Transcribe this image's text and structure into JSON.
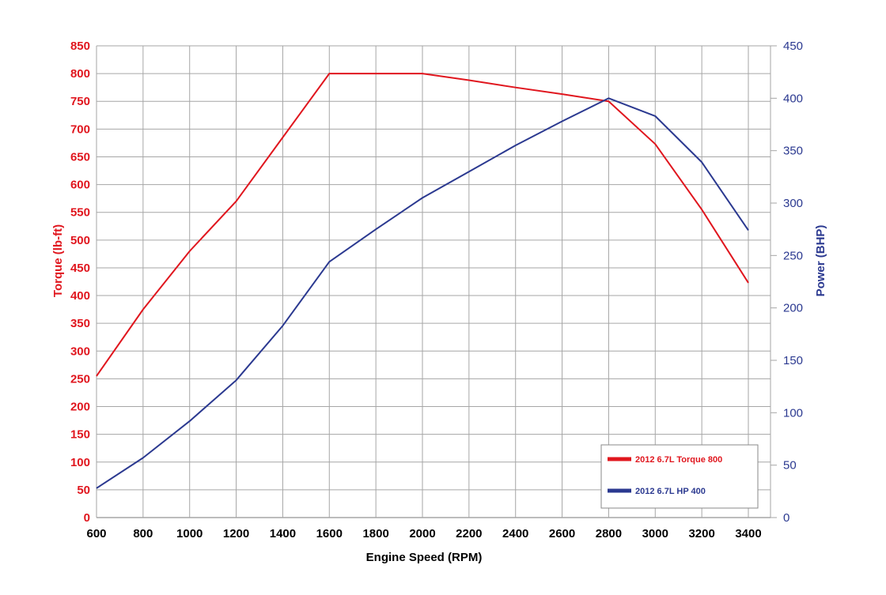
{
  "chart_data": {
    "type": "line",
    "x": [
      600,
      800,
      1000,
      1200,
      1400,
      1600,
      1800,
      2000,
      2200,
      2400,
      2600,
      2800,
      3000,
      3200,
      3400
    ],
    "xlabel": "Engine Speed (RPM)",
    "xlim": [
      600,
      3400
    ],
    "y_left": {
      "label": "Torque (lb-ft)",
      "lim": [
        0,
        850
      ],
      "step": 50
    },
    "y_right": {
      "label": "Power (BHP)",
      "lim": [
        0,
        450
      ],
      "step": 50
    },
    "grid": true,
    "legend_position": "bottom-right",
    "series": [
      {
        "name": "2012 6.7L Torque 800",
        "axis": "left",
        "color": "#e0161e",
        "values": [
          255,
          375,
          480,
          570,
          685,
          800,
          800,
          800,
          788,
          775,
          763,
          750,
          673,
          555,
          423
        ]
      },
      {
        "name": "2012 6.7L HP 400",
        "axis": "right",
        "color": "#2b3990",
        "values": [
          28,
          57,
          92,
          131,
          183,
          244,
          275,
          305,
          330,
          355,
          378,
          400,
          383,
          339,
          274
        ]
      }
    ]
  }
}
